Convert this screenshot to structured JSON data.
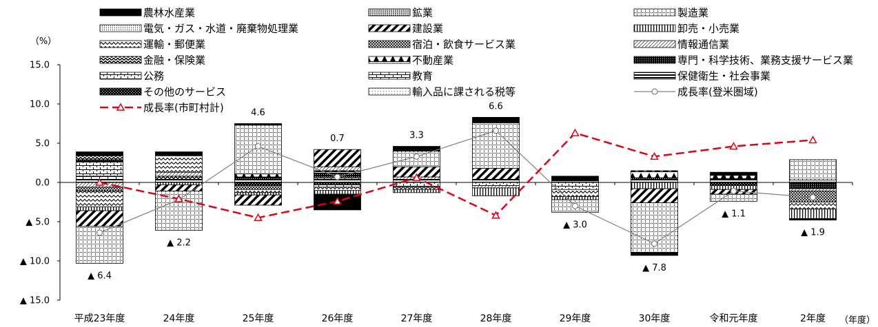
{
  "chart_data": {
    "type": "bar",
    "stacked": true,
    "ylabel": "（%）",
    "xlabel": "（年度）",
    "ylim": [
      -15,
      15
    ],
    "yticks": [
      15,
      10,
      5,
      0,
      -5,
      -10,
      -15
    ],
    "ytick_labels": [
      "15.0",
      "10.0",
      "5.0",
      "0.0",
      "▲ 5.0",
      "▲ 10.0",
      "▲ 15.0"
    ],
    "grid": false,
    "legend": "top",
    "categories": [
      "平成23年度",
      "24年度",
      "25年度",
      "26年度",
      "27年度",
      "28年度",
      "29年度",
      "30年度",
      "令和元年度",
      "2年度"
    ],
    "series": [
      {
        "name": "農林水産業",
        "values": [
          0.5,
          0.5,
          0.2,
          -2.0,
          0.6,
          0.7,
          0.6,
          -0.4,
          0.4,
          -0.2
        ]
      },
      {
        "name": "鉱業",
        "values": [
          0,
          0,
          0,
          0,
          0,
          0,
          0,
          0,
          0,
          0
        ]
      },
      {
        "name": "製造業",
        "values": [
          -4.7,
          -5.0,
          6.2,
          0,
          2.0,
          5.8,
          -1.6,
          -6.3,
          -0.9,
          2.6
        ]
      },
      {
        "name": "電気・ガス・水道・廃棄物処理業",
        "values": [
          0,
          0,
          0,
          0,
          0,
          0,
          0,
          0,
          0,
          0
        ]
      },
      {
        "name": "建設業",
        "values": [
          -2.0,
          -0.8,
          -1.3,
          2.2,
          1.3,
          1.4,
          0,
          -1.8,
          -0.6,
          0
        ]
      },
      {
        "name": "卸売・小売業",
        "values": [
          -0.5,
          -0.3,
          -0.3,
          -0.5,
          -0.4,
          -1.0,
          -0.4,
          -0.8,
          -0.5,
          -1.2
        ]
      },
      {
        "name": "運輸・郵便業",
        "values": [
          -2.0,
          2.1,
          -0.4,
          -0.4,
          -0.3,
          0,
          -0.9,
          0,
          0,
          -0.9
        ]
      },
      {
        "name": "宿泊・飲食サービス業",
        "values": [
          -0.5,
          0,
          -0.5,
          0,
          0,
          0,
          0,
          0,
          0,
          -1.4
        ]
      },
      {
        "name": "情報通信業",
        "values": [
          -0.6,
          0.5,
          0,
          0.5,
          0.3,
          -0.3,
          0,
          0,
          0,
          -0.3
        ]
      },
      {
        "name": "金融・保険業",
        "values": [
          0.5,
          0.4,
          0,
          0,
          0,
          0,
          0,
          0,
          0,
          0
        ]
      },
      {
        "name": "不動産業",
        "values": [
          0,
          0,
          0.4,
          0.3,
          0,
          0,
          0,
          0.9,
          0.5,
          0
        ]
      },
      {
        "name": "専門・科学技術、業務支援サービス業",
        "values": [
          0.3,
          0,
          0.4,
          0.5,
          0,
          0,
          0,
          0.3,
          0,
          -0.8
        ]
      },
      {
        "name": "公務",
        "values": [
          1.8,
          0,
          0,
          0.3,
          -0.6,
          -0.4,
          -0.9,
          0,
          0,
          0
        ]
      },
      {
        "name": "教育",
        "values": [
          0.4,
          0,
          0,
          -0.4,
          0,
          0,
          0,
          0,
          0,
          0
        ]
      },
      {
        "name": "保健衛生・社会事業",
        "values": [
          0.4,
          0.4,
          0.3,
          0.4,
          0.4,
          0.4,
          0.2,
          0.3,
          0.4,
          0.3
        ]
      },
      {
        "name": "その他のサービス",
        "values": [
          0,
          0,
          -0.4,
          -0.2,
          0,
          0,
          0,
          0,
          -0.4,
          0
        ]
      },
      {
        "name": "輸入品に課される税等",
        "values": [
          0,
          0,
          0,
          0,
          0,
          0,
          0,
          0,
          0,
          0
        ]
      }
    ],
    "lines": [
      {
        "name": "成長率(登米圏域)",
        "color": "#7f7f7f",
        "style": "solid",
        "marker": "circle",
        "values": [
          -6.4,
          -2.2,
          4.6,
          0.7,
          3.3,
          6.6,
          -3.0,
          -7.8,
          -1.1,
          -1.9
        ],
        "data_labels": [
          "▲ 6.4",
          "▲ 2.2",
          "4.6",
          "0.7",
          "3.3",
          "6.6",
          "▲ 3.0",
          "▲ 7.8",
          "▲ 1.1",
          "▲ 1.9"
        ]
      },
      {
        "name": "成長率(市町村計)",
        "color": "#e60012",
        "style": "dashed",
        "marker": "triangle",
        "values": [
          0.0,
          -2.1,
          -4.5,
          -2.4,
          0.6,
          -4.2,
          6.3,
          3.3,
          4.6,
          5.4
        ]
      }
    ]
  }
}
